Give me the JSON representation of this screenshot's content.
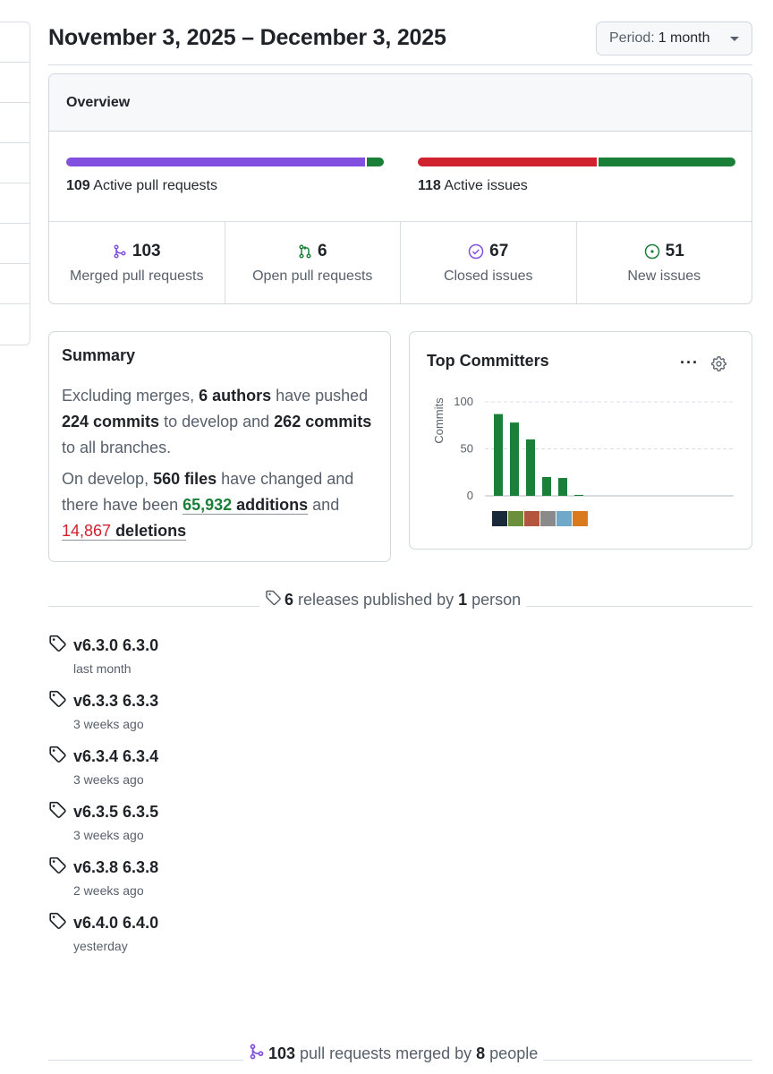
{
  "header": {
    "date_range": "November 3, 2025 – December 3, 2025",
    "period_label": "Period:",
    "period_value": "1 month"
  },
  "overview": {
    "title": "Overview",
    "pull_requests": {
      "count": "109",
      "label": "Active pull requests",
      "merged_share": 103,
      "open_share": 6,
      "colors": {
        "merged": "#8250df",
        "open": "#1a7f37"
      }
    },
    "issues": {
      "count": "118",
      "label": "Active issues",
      "closed_share": 67,
      "new_share": 51,
      "colors": {
        "closed": "#cf222e",
        "new": "#1a7f37"
      }
    },
    "stats": [
      {
        "value": "103",
        "label": "Merged pull requests",
        "icon": "git-merge-icon",
        "color": "#8250df"
      },
      {
        "value": "6",
        "label": "Open pull requests",
        "icon": "git-pull-request-icon",
        "color": "#1a7f37"
      },
      {
        "value": "67",
        "label": "Closed issues",
        "icon": "issue-closed-icon",
        "color": "#8250df"
      },
      {
        "value": "51",
        "label": "New issues",
        "icon": "issue-opened-icon",
        "color": "#1a7f37"
      }
    ]
  },
  "summary": {
    "title": "Summary",
    "p1": {
      "t1": "Excluding merges, ",
      "authors": "6 authors",
      "t2": " have pushed ",
      "commits_develop": "224 commits",
      "t3": " to develop and ",
      "commits_all": "262 commits",
      "t4": " to all branches."
    },
    "p2": {
      "t1": "On develop, ",
      "files": "560 files",
      "t2": " have changed and there have been ",
      "additions_num": "65,932",
      "additions_word": " additions",
      "t3": " and ",
      "deletions_num": "14,867",
      "deletions_word": " deletions"
    }
  },
  "committers": {
    "title": "Top Committers",
    "more_icon": "kebab-horizontal-icon",
    "settings_icon": "gear-icon"
  },
  "chart_data": {
    "type": "bar",
    "title": "Top Committers",
    "xlabel": "",
    "ylabel": "Commits",
    "ylim": [
      0,
      100
    ],
    "yticks": [
      "100",
      "50",
      "0"
    ],
    "categories": [
      "committer-1",
      "committer-2",
      "committer-3",
      "committer-4",
      "committer-5",
      "committer-6"
    ],
    "values": [
      87,
      78,
      60,
      20,
      19,
      1
    ],
    "bar_color": "#1a7f37",
    "avatar_colors": [
      "#1b2a3a",
      "#6b8f3a",
      "#b3543c",
      "#8a8a8a",
      "#6fa8c8",
      "#d97a1c"
    ]
  },
  "releases": {
    "summary": {
      "count": "6",
      "t1": " releases published by ",
      "people": "1",
      "t2": " person"
    },
    "items": [
      {
        "name": "v6.3.0 6.3.0",
        "when": "last month"
      },
      {
        "name": "v6.3.3 6.3.3",
        "when": "3 weeks ago"
      },
      {
        "name": "v6.3.4 6.3.4",
        "when": "3 weeks ago"
      },
      {
        "name": "v6.3.5 6.3.5",
        "when": "3 weeks ago"
      },
      {
        "name": "v6.3.8 6.3.8",
        "when": "2 weeks ago"
      },
      {
        "name": "v6.4.0 6.4.0",
        "when": "yesterday"
      }
    ]
  },
  "merged_prs": {
    "count": "103",
    "t1": " pull requests merged by ",
    "people": "8",
    "t2": " people"
  }
}
